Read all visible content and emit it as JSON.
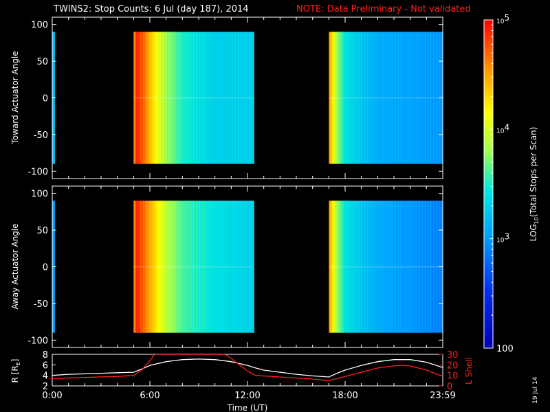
{
  "header": {
    "title": "TWINS2: Stop Counts:  6 Jul (day 187), 2014",
    "note": "NOTE: Data Preliminary - Not validated",
    "note_color": "#ff2020"
  },
  "side_label": "19 Jul 14",
  "chart_data": [
    {
      "type": "heatmap",
      "panel": "toward",
      "ylabel": "Toward Actuator Angle",
      "ylim": [
        -110,
        110
      ],
      "yticks": [
        -100,
        -50,
        0,
        50,
        100
      ],
      "xlim": [
        0,
        24
      ],
      "data_segments": [
        {
          "start_h": 0.0,
          "end_h": 0.15
        },
        {
          "start_h": 5.0,
          "end_h": 12.4
        },
        {
          "start_h": 17.0,
          "end_h": 24.0
        }
      ],
      "angle_range": [
        -90,
        90
      ],
      "profile": [
        {
          "h": 0.0,
          "log": 3.2
        },
        {
          "h": 0.15,
          "log": 3.2
        },
        {
          "h": 5.0,
          "log": 4.5
        },
        {
          "h": 5.2,
          "log": 4.9
        },
        {
          "h": 5.6,
          "log": 4.7
        },
        {
          "h": 6.3,
          "log": 4.2
        },
        {
          "h": 7.0,
          "log": 3.8
        },
        {
          "h": 8.0,
          "log": 3.5
        },
        {
          "h": 10.0,
          "log": 3.3
        },
        {
          "h": 12.4,
          "log": 3.3
        },
        {
          "h": 17.0,
          "log": 4.6
        },
        {
          "h": 17.4,
          "log": 3.9
        },
        {
          "h": 18.0,
          "log": 3.4
        },
        {
          "h": 20.0,
          "log": 3.1
        },
        {
          "h": 24.0,
          "log": 3.0
        }
      ]
    },
    {
      "type": "heatmap",
      "panel": "away",
      "ylabel": "Away Actuator Angle",
      "ylim": [
        -110,
        110
      ],
      "yticks": [
        -100,
        -50,
        0,
        50,
        100
      ],
      "xlim": [
        0,
        24
      ],
      "data_segments": [
        {
          "start_h": 0.0,
          "end_h": 0.15
        },
        {
          "start_h": 5.0,
          "end_h": 12.4
        },
        {
          "start_h": 17.0,
          "end_h": 24.0
        }
      ],
      "angle_range": [
        -90,
        90
      ],
      "profile": [
        {
          "h": 0.0,
          "log": 3.1
        },
        {
          "h": 0.15,
          "log": 3.0
        },
        {
          "h": 5.0,
          "log": 4.5
        },
        {
          "h": 5.2,
          "log": 4.9
        },
        {
          "h": 5.6,
          "log": 4.7
        },
        {
          "h": 6.3,
          "log": 4.3
        },
        {
          "h": 7.0,
          "log": 3.9
        },
        {
          "h": 8.0,
          "log": 3.6
        },
        {
          "h": 10.0,
          "log": 3.4
        },
        {
          "h": 12.4,
          "log": 3.3
        },
        {
          "h": 17.0,
          "log": 4.6
        },
        {
          "h": 17.4,
          "log": 3.9
        },
        {
          "h": 18.0,
          "log": 3.4
        },
        {
          "h": 20.0,
          "log": 3.1
        },
        {
          "h": 24.0,
          "log": 2.9
        }
      ]
    },
    {
      "type": "colorbar",
      "label": "LOG",
      "label_sub": "10",
      "label_rest": "(Total Stops per Scan)",
      "scale": "log",
      "range": [
        100,
        100000
      ],
      "tick_labels": [
        {
          "base": "10",
          "exp": "5",
          "value": 100000
        },
        {
          "base": "10",
          "exp": "4",
          "value": 10000
        },
        {
          "base": "10",
          "exp": "3",
          "value": 1000
        },
        {
          "base": "100",
          "exp": "",
          "value": 100
        }
      ]
    },
    {
      "type": "line",
      "panel": "orbit",
      "ylabel": "R [R",
      "ylabel_sub": "E",
      "ylabel_end": "]",
      "ylim": [
        2,
        8
      ],
      "yticks": [
        2,
        4,
        6,
        8
      ],
      "y2label": "L Shell",
      "y2lim": [
        0,
        30
      ],
      "y2ticks": [
        0,
        10,
        20,
        30
      ],
      "y2color": "#ff2020",
      "xlabel": "Time (UT)",
      "xlim": [
        0,
        24
      ],
      "xtick_labels": [
        {
          "h": 0,
          "label": "0:00"
        },
        {
          "h": 6,
          "label": "6:00"
        },
        {
          "h": 12,
          "label": "12:00"
        },
        {
          "h": 18,
          "label": "18:00"
        },
        {
          "h": 24,
          "label": "23:59"
        }
      ],
      "series": [
        {
          "color": "#ffffff",
          "axis": "left",
          "x": [
            0,
            1,
            2,
            3,
            4,
            5,
            5.5,
            6,
            7,
            8,
            9,
            10,
            11,
            12,
            12.5,
            13,
            14,
            15,
            16,
            17,
            17.5,
            18,
            19,
            20,
            21,
            22,
            23,
            24
          ],
          "y": [
            4.0,
            4.2,
            4.3,
            4.4,
            4.5,
            4.6,
            5.2,
            5.9,
            6.6,
            7.0,
            7.1,
            7.0,
            6.6,
            5.9,
            5.4,
            5.0,
            4.6,
            4.2,
            3.9,
            3.7,
            4.4,
            5.0,
            5.9,
            6.6,
            7.0,
            7.0,
            6.5,
            5.5
          ]
        },
        {
          "color": "#ff2020",
          "axis": "right",
          "x": [
            0,
            2,
            4,
            5,
            5.5,
            6,
            6.3,
            10.6,
            11,
            11.5,
            12,
            12.5,
            14,
            16,
            17,
            18,
            19,
            20,
            21,
            21.5,
            22,
            23,
            24
          ],
          "y": [
            7,
            8,
            9,
            10,
            15,
            24,
            30,
            30,
            26,
            20,
            14,
            10,
            8.5,
            6.5,
            5,
            9,
            13,
            17,
            19,
            19.5,
            19,
            15,
            9
          ]
        }
      ]
    }
  ]
}
